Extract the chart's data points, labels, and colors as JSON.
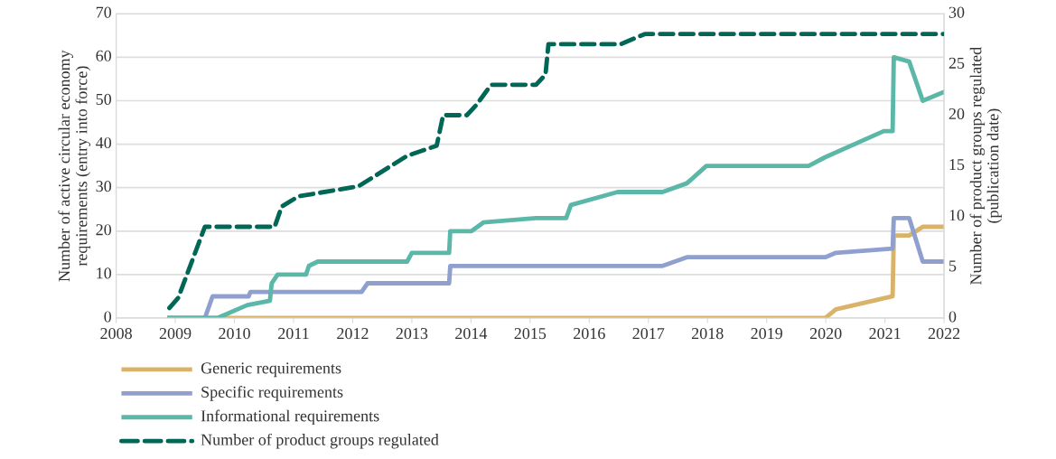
{
  "chart_data": {
    "type": "line",
    "ylabel": "Number of active circular economy\nrequirements (entry into force)",
    "y2label": "Number of product groups regulated\n(publication date)",
    "xlim": [
      2008,
      2022
    ],
    "xticks": [
      2008,
      2009,
      2010,
      2011,
      2012,
      2013,
      2014,
      2015,
      2016,
      2017,
      2018,
      2019,
      2020,
      2021,
      2022
    ],
    "ylim": [
      0,
      70
    ],
    "yticks": [
      0,
      10,
      20,
      30,
      40,
      50,
      60,
      70
    ],
    "y2lim": [
      0,
      30
    ],
    "y2ticks": [
      0,
      5,
      10,
      15,
      20,
      25,
      30
    ],
    "grid": "y",
    "legend": "bottom",
    "line_style": "solid",
    "series": [
      {
        "name": "Generic requirements",
        "color": "#d9b36a",
        "x": [
          2008.9,
          2019.99,
          2020.17,
          2021.13,
          2021.15,
          2021.41,
          2021.64,
          2022
        ],
        "values": [
          0,
          0,
          2,
          5,
          19,
          19,
          21,
          21
        ]
      },
      {
        "name": "Specific requirements",
        "color": "#8fa0cf",
        "x": [
          2008.9,
          2009.5,
          2009.63,
          2010.24,
          2010.27,
          2012.15,
          2012.25,
          2013.63,
          2013.65,
          2017.24,
          2017.65,
          2019.99,
          2020.17,
          2021.13,
          2021.15,
          2021.41,
          2021.64,
          2022
        ],
        "values": [
          0,
          0,
          5,
          5,
          6,
          6,
          8,
          8,
          12,
          12,
          14,
          14,
          15,
          16,
          23,
          23,
          13,
          13
        ]
      },
      {
        "name": "Informational requirements",
        "color": "#5bb8a8",
        "x": [
          2008.9,
          2009.71,
          2010.22,
          2010.6,
          2010.63,
          2010.73,
          2011.21,
          2011.26,
          2011.41,
          2012.92,
          2013.0,
          2013.63,
          2013.65,
          2014.01,
          2014.21,
          2015.1,
          2015.61,
          2015.69,
          2016.48,
          2017.24,
          2017.65,
          2017.98,
          2019.71,
          2019.99,
          2020.98,
          2021.13,
          2021.15,
          2021.41,
          2021.64,
          2022
        ],
        "values": [
          0,
          0,
          3,
          4,
          8,
          10,
          10,
          12,
          13,
          13,
          15,
          15,
          20,
          20,
          22,
          23,
          23,
          26,
          29,
          29,
          31,
          35,
          35,
          37,
          43,
          43,
          60,
          59,
          50,
          52
        ]
      },
      {
        "name": "Number of product groups regulated",
        "color": "#006655",
        "axis": "y2",
        "line_style": "dashed",
        "x": [
          2008.9,
          2009.05,
          2009.5,
          2010.68,
          2010.8,
          2011.08,
          2012.1,
          2012.92,
          2013.42,
          2013.53,
          2013.93,
          2014.09,
          2014.34,
          2015.1,
          2015.26,
          2015.31,
          2016.53,
          2016.94,
          2022
        ],
        "values": [
          1,
          2,
          9,
          9,
          11,
          12,
          13,
          16,
          17,
          20,
          20,
          21,
          23,
          23,
          24,
          27,
          27,
          28,
          28
        ]
      }
    ]
  }
}
